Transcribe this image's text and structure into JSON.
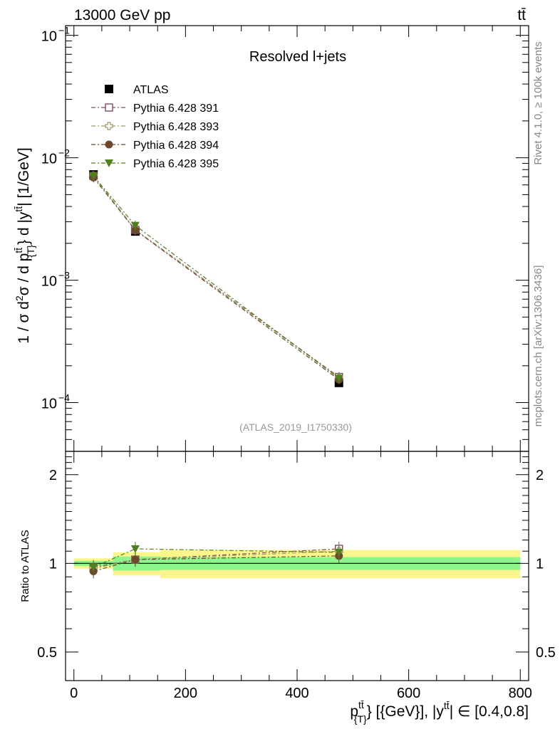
{
  "header": {
    "left": "13000 GeV pp",
    "right": "tt̄"
  },
  "side": {
    "rivet": "Rivet 4.1.0, ≥ 100k events",
    "mcplots": "mcplots.cern.ch [arXiv:1306.3436]"
  },
  "watermark": "(ATLAS_2019_I1750330)",
  "colors": {
    "atlas": "#000000",
    "py391": "#7f4c5f",
    "py393": "#a09a6a",
    "py394": "#6b4a2c",
    "py395": "#4f7f1f",
    "band_inner": "#8cf58c",
    "band_outer": "#fcf58c"
  },
  "chart_data": [
    {
      "type": "scatter",
      "title": "Resolved l+jets",
      "xlabel": "p_{T}^{tt̄} [{GeV}], |y^{tt̄}| ∈ [0.4,0.8]",
      "ylabel": "1 / σ d²σ / d p_{T}^{tt̄} d |y^{tt̄}| [1/GeV]",
      "yscale": "log",
      "xlim": [
        -15,
        815
      ],
      "ylim": [
        4e-05,
        0.12
      ],
      "yticks": [
        {
          "value": 0.1,
          "label": "10",
          "exp": "−1"
        },
        {
          "value": 0.01,
          "label": "10",
          "exp": "−2"
        },
        {
          "value": 0.001,
          "label": "10",
          "exp": "−3"
        },
        {
          "value": 0.0001,
          "label": "10",
          "exp": "−4"
        }
      ],
      "x": [
        35,
        110,
        475
      ],
      "bins": [
        [
          0,
          70
        ],
        [
          70,
          155
        ],
        [
          155,
          800
        ]
      ],
      "series": [
        {
          "name": "ATLAS",
          "key": "atlas",
          "marker": "square-filled",
          "values": [
            0.0073,
            0.0025,
            0.000145
          ]
        },
        {
          "name": "Pythia 6.428 391",
          "key": "py391",
          "marker": "square-open",
          "values": [
            0.0071,
            0.00258,
            0.000162
          ]
        },
        {
          "name": "Pythia 6.428 393",
          "key": "py393",
          "marker": "cross-open",
          "values": [
            0.0071,
            0.00257,
            0.00016
          ]
        },
        {
          "name": "Pythia 6.428 394",
          "key": "py394",
          "marker": "circle-filled",
          "values": [
            0.0069,
            0.00256,
            0.000154
          ]
        },
        {
          "name": "Pythia 6.428 395",
          "key": "py395",
          "marker": "triangle-down-filled",
          "values": [
            0.0071,
            0.0028,
            0.000158
          ]
        }
      ]
    },
    {
      "type": "scatter",
      "ylabel": "Ratio to ATLAS",
      "yscale": "log",
      "ylim": [
        0.4,
        2.4
      ],
      "yticks": [
        {
          "value": 0.5,
          "label": "0.5"
        },
        {
          "value": 1,
          "label": "1"
        },
        {
          "value": 2,
          "label": "2"
        }
      ],
      "xticks": [
        {
          "value": 0,
          "label": "0"
        },
        {
          "value": 200,
          "label": "200"
        },
        {
          "value": 400,
          "label": "400"
        },
        {
          "value": 600,
          "label": "600"
        },
        {
          "value": 800,
          "label": "800"
        }
      ],
      "bands": {
        "inner": [
          0.02,
          0.055,
          0.05
        ],
        "outer": [
          0.04,
          0.09,
          0.11
        ]
      },
      "series": [
        {
          "key": "py391",
          "marker": "square-open",
          "values": [
            0.97,
            1.03,
            1.12
          ]
        },
        {
          "key": "py393",
          "marker": "cross-open",
          "values": [
            0.96,
            1.03,
            1.1
          ]
        },
        {
          "key": "py394",
          "marker": "circle-filled",
          "values": [
            0.94,
            1.03,
            1.06
          ]
        },
        {
          "key": "py395",
          "marker": "triangle-down-filled",
          "values": [
            0.97,
            1.12,
            1.09
          ]
        }
      ]
    }
  ]
}
